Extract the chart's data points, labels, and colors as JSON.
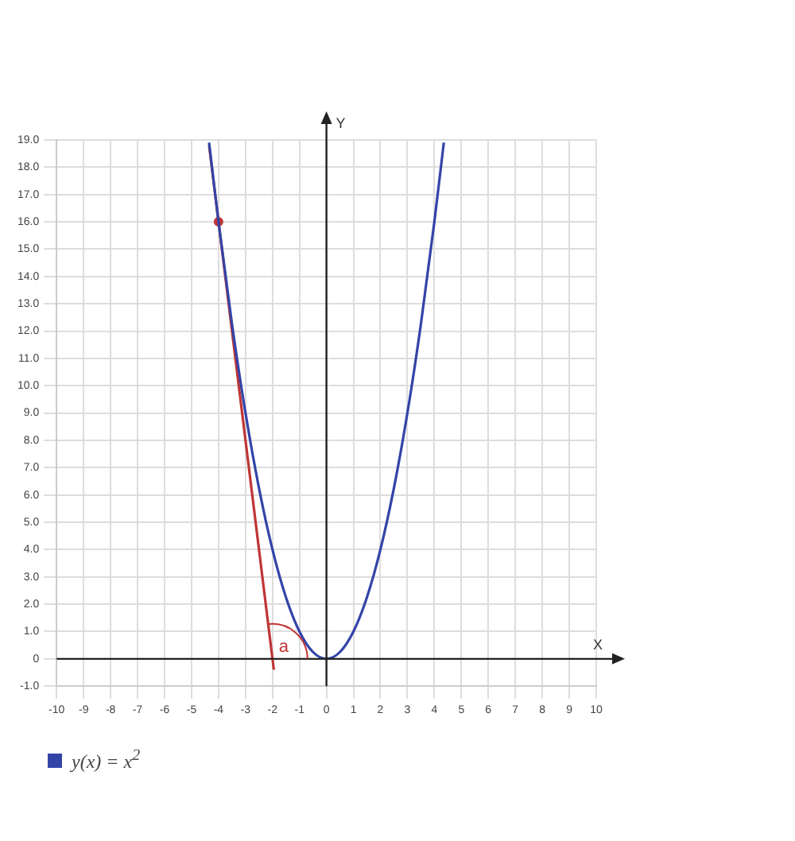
{
  "chart_data": {
    "type": "line",
    "xlabel": "X",
    "ylabel": "Y",
    "xlim": [
      -10,
      10
    ],
    "ylim": [
      -1,
      19
    ],
    "xticks": [
      -10,
      -9,
      -8,
      -7,
      -6,
      -5,
      -4,
      -3,
      -2,
      -1,
      0,
      1,
      2,
      3,
      4,
      5,
      6,
      7,
      8,
      9,
      10
    ],
    "yticks": [
      {
        "value": -1,
        "label": "-1.0"
      },
      0,
      {
        "value": 1,
        "label": "1.0"
      },
      {
        "value": 2,
        "label": "2.0"
      },
      {
        "value": 3,
        "label": "3.0"
      },
      {
        "value": 4,
        "label": "4.0"
      },
      {
        "value": 5,
        "label": "5.0"
      },
      {
        "value": 6,
        "label": "6.0"
      },
      {
        "value": 7,
        "label": "7.0"
      },
      {
        "value": 8,
        "label": "8.0"
      },
      {
        "value": 9,
        "label": "9.0"
      },
      {
        "value": 10,
        "label": "10.0"
      },
      {
        "value": 11,
        "label": "11.0"
      },
      {
        "value": 12,
        "label": "12.0"
      },
      {
        "value": 13,
        "label": "13.0"
      },
      {
        "value": 14,
        "label": "14.0"
      },
      {
        "value": 15,
        "label": "15.0"
      },
      {
        "value": 16,
        "label": "16.0"
      },
      {
        "value": 17,
        "label": "17.0"
      },
      {
        "value": 18,
        "label": "18.0"
      },
      {
        "value": 19,
        "label": "19.0"
      }
    ],
    "grid": true,
    "legend": "bottom",
    "series": [
      {
        "name": "y(x) = x$^{2}$",
        "color": "#3344a8",
        "x": [
          -4.35,
          -4,
          -3.5,
          -3,
          -2.5,
          -2,
          -1.5,
          -1,
          -0.5,
          0,
          0.5,
          1,
          1.5,
          2,
          2.5,
          3,
          3.5,
          4,
          4.35
        ],
        "values": [
          18.9,
          16,
          12.25,
          9,
          6.25,
          4,
          2.25,
          1,
          0.25,
          0,
          0.25,
          1,
          2.25,
          4,
          6.25,
          9,
          12.25,
          16,
          18.9
        ]
      },
      {
        "type": "line",
        "color": "#c03535",
        "x": [
          -4.35,
          -1.95
        ],
        "values": [
          18.8,
          -0.4
        ]
      },
      {
        "type": "scatter",
        "color": "#c03535",
        "x": [
          -4
        ],
        "values": [
          16
        ]
      }
    ],
    "annotations": [
      "a"
    ]
  }
}
